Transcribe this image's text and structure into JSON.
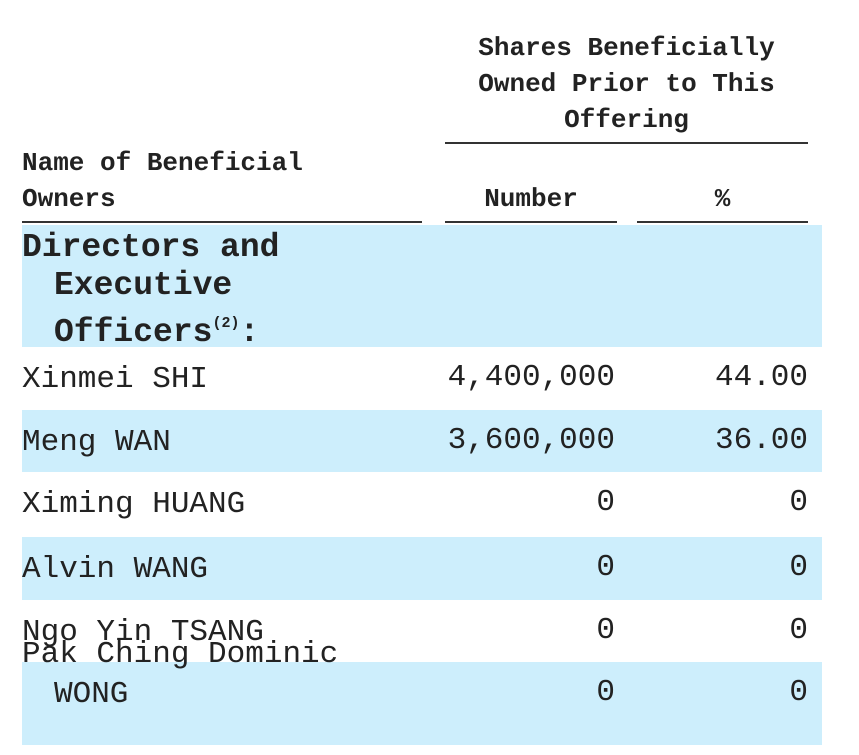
{
  "header": {
    "group_title": "Shares Beneficially Owned Prior to This Offering",
    "name_col": "Name of Beneficial Owners",
    "number_col": "Number",
    "pct_col": "%"
  },
  "section": {
    "text": "Directors and Executive Officers",
    "note": "(2)",
    "suffix": ":"
  },
  "rows": [
    [
      "Xinmei SHI",
      "4,400,000",
      "44.00"
    ],
    [
      "Meng WAN",
      "3,600,000",
      "36.00"
    ],
    [
      "Ximing HUANG",
      "0",
      "0"
    ],
    [
      "Alvin WANG",
      "0",
      "0"
    ],
    [
      "Ngo Yin TSANG",
      "0",
      "0"
    ],
    [
      "Pak Ching Dominic WONG",
      "0",
      "0"
    ]
  ]
}
